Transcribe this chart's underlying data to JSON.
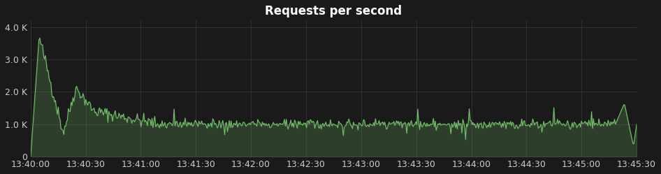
{
  "title": "Requests per second",
  "bg_color": "#1a1a1a",
  "plot_bg_color": "#1a1a1a",
  "line_color": "#73bf69",
  "grid_color": "#404040",
  "text_color": "#cccccc",
  "title_color": "#ffffff",
  "ylim": [
    0,
    4200
  ],
  "yticks": [
    0,
    1000,
    2000,
    3000,
    4000
  ],
  "ytick_labels": [
    "0",
    "1.0 K",
    "2.0 K",
    "3.0 K",
    "4.0 K"
  ],
  "xtick_labels": [
    "13:40:00",
    "13:40:30",
    "13:41:00",
    "13:41:30",
    "13:42:00",
    "13:42:30",
    "13:43:00",
    "13:43:30",
    "13:44:00",
    "13:44:30",
    "13:45:00",
    "13:45:30"
  ],
  "duration_seconds": 330,
  "seed": 42
}
